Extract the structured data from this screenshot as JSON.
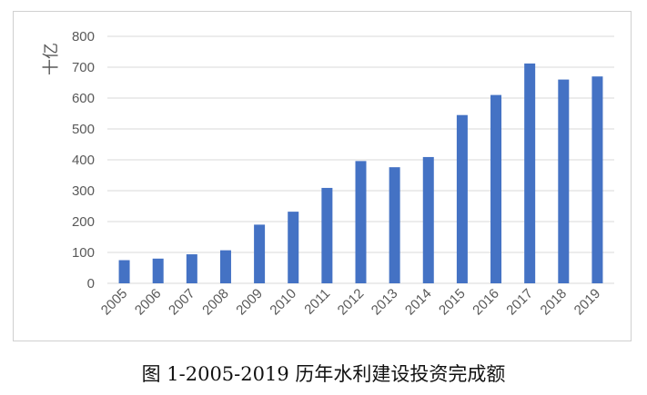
{
  "caption": "图 1-2005-2019 历年水利建设投资完成额",
  "chart_data": {
    "type": "bar",
    "title": "",
    "ylabel": "十亿",
    "xlabel": "",
    "categories": [
      "2005",
      "2006",
      "2007",
      "2008",
      "2009",
      "2010",
      "2011",
      "2012",
      "2013",
      "2014",
      "2015",
      "2016",
      "2017",
      "2018",
      "2019"
    ],
    "values": [
      75,
      80,
      94,
      107,
      190,
      232,
      309,
      396,
      376,
      409,
      545,
      610,
      712,
      660,
      670
    ],
    "ylim": [
      0,
      800
    ],
    "yticks": [
      0,
      100,
      200,
      300,
      400,
      500,
      600,
      700,
      800
    ],
    "grid": true,
    "legend": "none",
    "bar_color": "#4472C4",
    "grid_color": "#d9d9d9"
  }
}
